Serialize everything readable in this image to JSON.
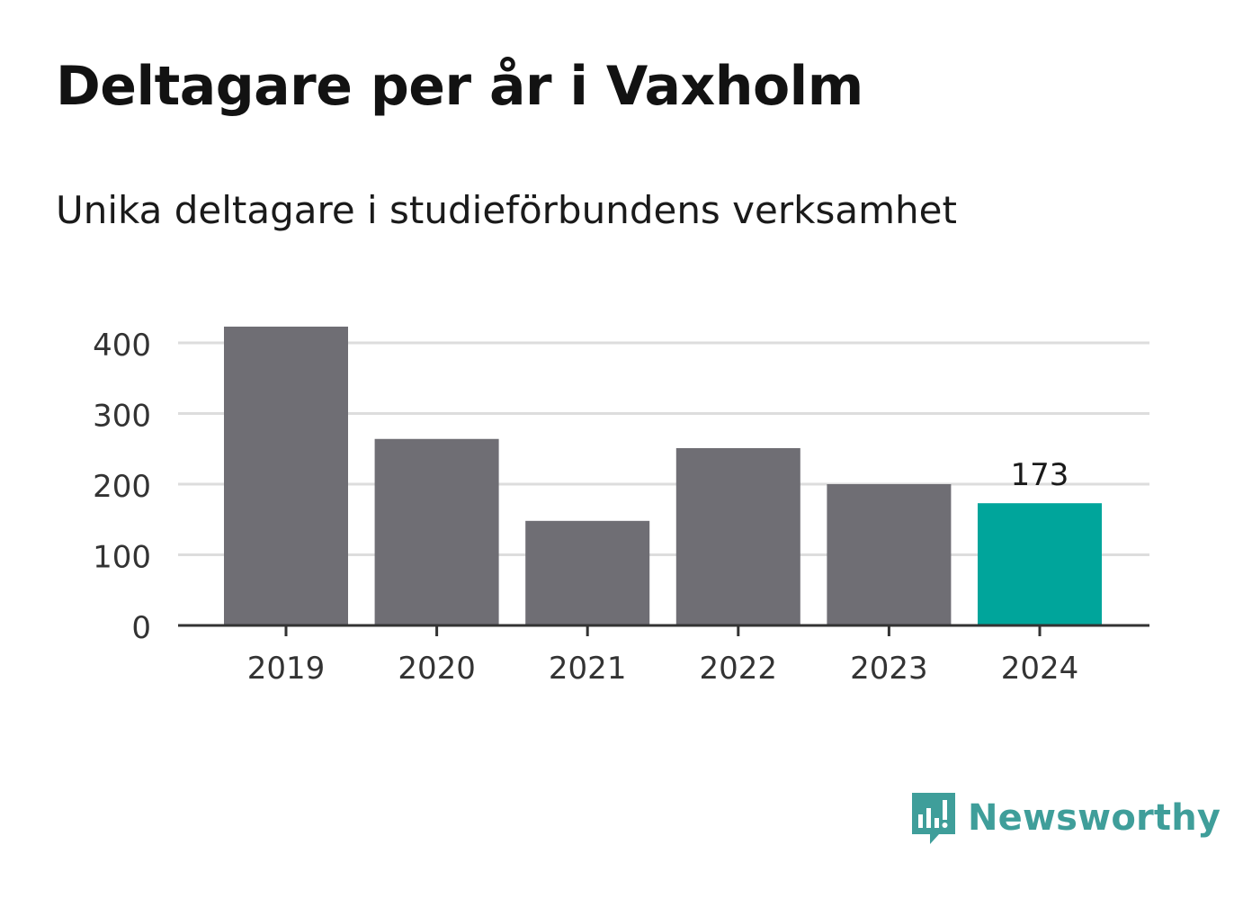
{
  "chart_data": {
    "type": "bar",
    "title": "Deltagare per år i Vaxholm",
    "subtitle": "Unika deltagare i studieförbundens verksamhet",
    "categories": [
      "2019",
      "2020",
      "2021",
      "2022",
      "2023",
      "2024"
    ],
    "values": [
      423,
      264,
      148,
      251,
      200,
      173
    ],
    "highlight_index": 5,
    "highlight_label": "173",
    "ylim": [
      0,
      400
    ],
    "yticks": [
      0,
      100,
      200,
      300,
      400
    ],
    "xlabel": "",
    "ylabel": "",
    "grid": true,
    "colors": {
      "bar": "#6f6e74",
      "highlight": "#00a59b",
      "grid": "#dddddd",
      "axis": "#333333"
    }
  },
  "brand": {
    "name": "Newsworthy",
    "icon": "bar-chart-speech-bubble-icon",
    "color": "#3f9e9a"
  }
}
